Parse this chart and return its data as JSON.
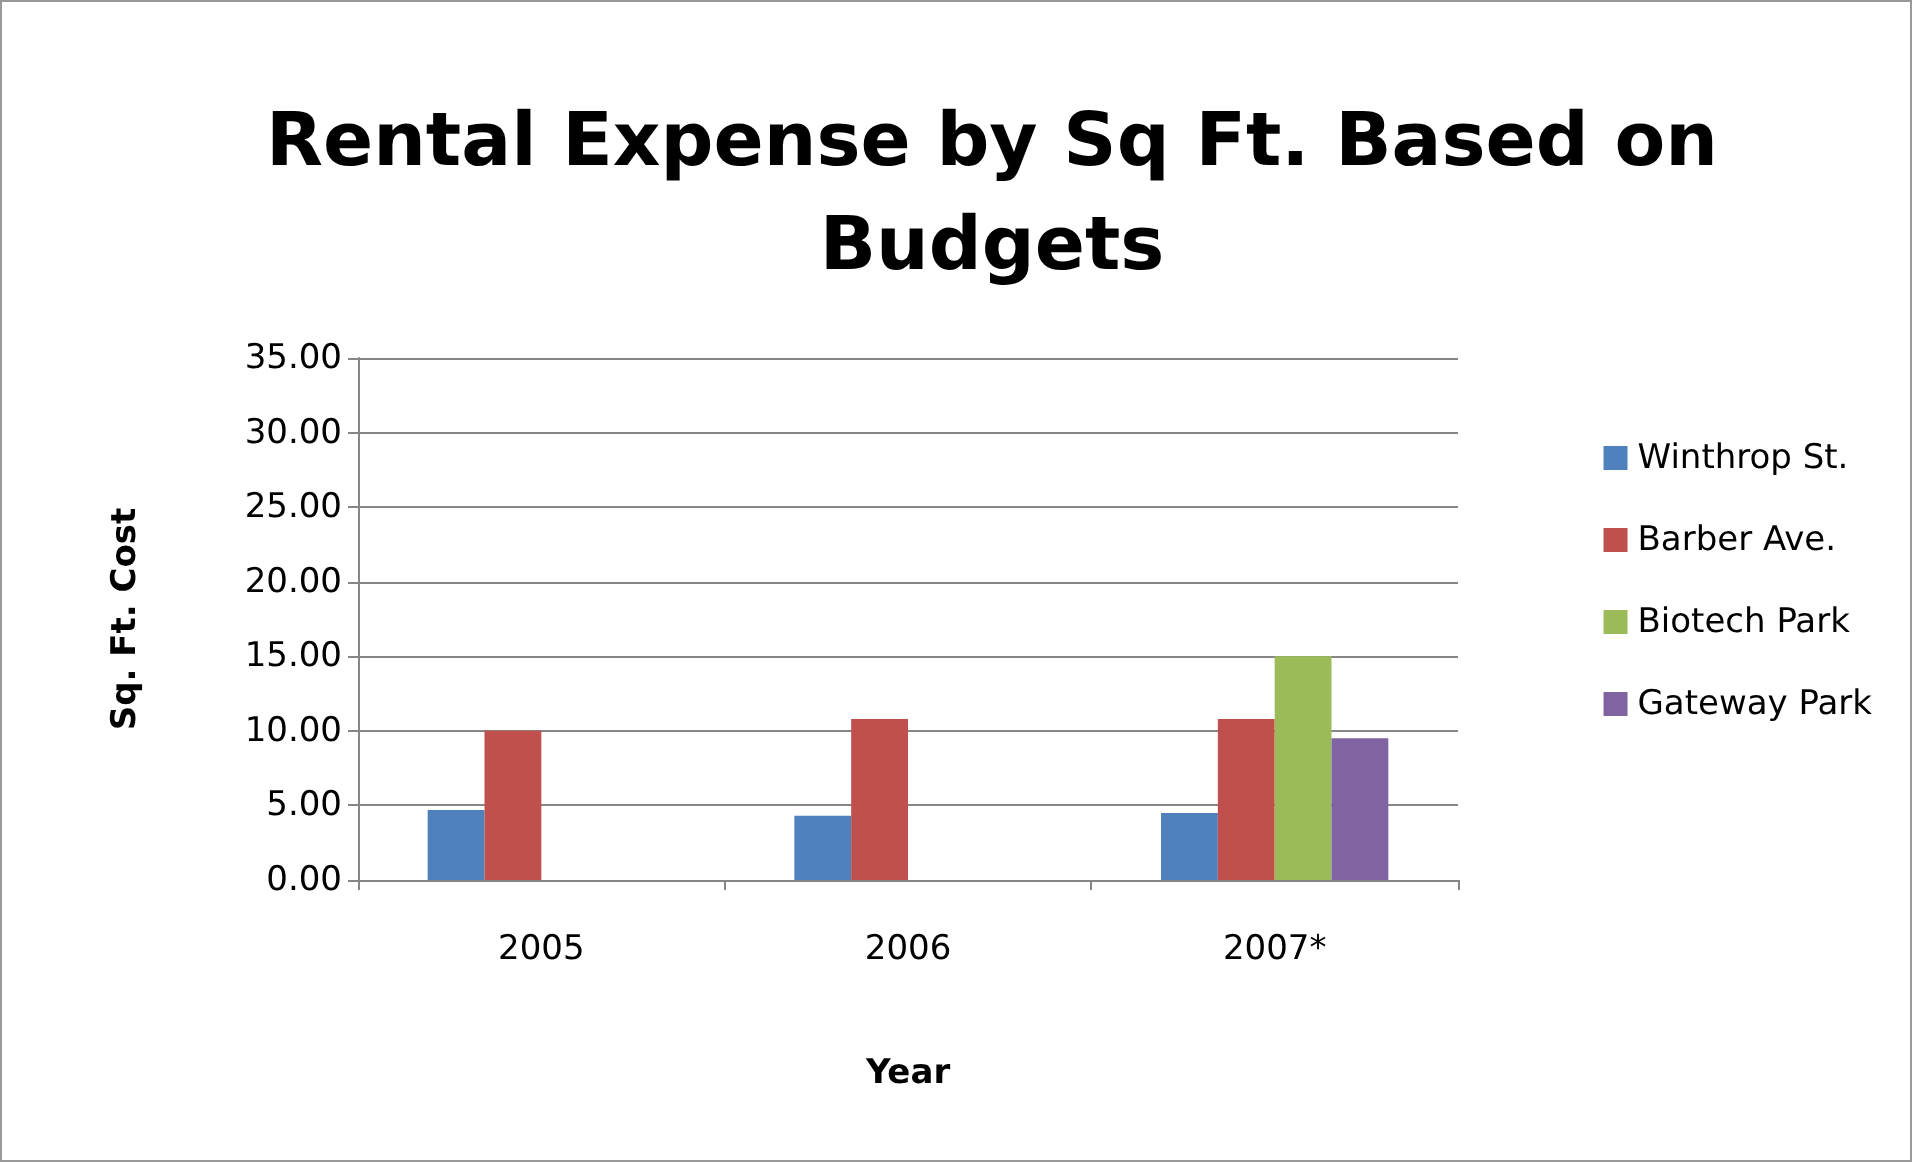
{
  "chart_data": {
    "type": "bar",
    "title": "Rental Expense by Sq Ft. Based on\nBudgets",
    "xlabel": "Year",
    "ylabel": "Sq. Ft. Cost",
    "categories": [
      "2005",
      "2006",
      "2007*"
    ],
    "series": [
      {
        "name": "Winthrop St.",
        "color": "#4f81bd",
        "values": [
          4.7,
          4.3,
          4.5
        ]
      },
      {
        "name": "Barber Ave.",
        "color": "#c0504d",
        "values": [
          10.0,
          10.8,
          10.8
        ]
      },
      {
        "name": "Biotech Park",
        "color": "#9bbb59",
        "values": [
          null,
          null,
          15.0
        ]
      },
      {
        "name": "Gateway Park",
        "color": "#8064a2",
        "values": [
          null,
          null,
          9.5
        ]
      }
    ],
    "ylim": [
      0,
      35
    ],
    "yticks": [
      {
        "value": 0,
        "label": "0.00"
      },
      {
        "value": 5,
        "label": "5.00"
      },
      {
        "value": 10,
        "label": "10.00"
      },
      {
        "value": 15,
        "label": "15.00"
      },
      {
        "value": 20,
        "label": "20.00"
      },
      {
        "value": 25,
        "label": "25.00"
      },
      {
        "value": 30,
        "label": "30.00"
      },
      {
        "value": 35,
        "label": "35.00"
      }
    ],
    "grid": "y",
    "legend": "right"
  }
}
